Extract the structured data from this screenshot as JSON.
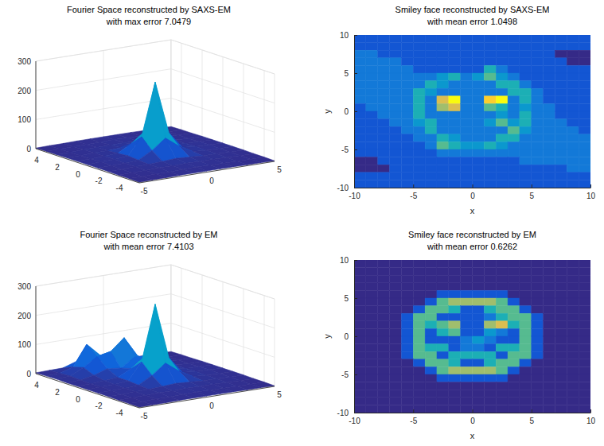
{
  "chart_data": [
    {
      "type": "surface",
      "title": [
        "Fourier Space reconstructed by SAXS-EM",
        "with max error 7.0479"
      ],
      "xlim": [
        -5,
        5
      ],
      "ylim": [
        -5,
        5
      ],
      "zlim": [
        0,
        300
      ],
      "xticks": [
        -5,
        0,
        5
      ],
      "yticks": [
        -4,
        -2,
        0,
        2,
        4
      ],
      "zticks": [
        0,
        100,
        200,
        300
      ],
      "grid": true,
      "x": [
        -5,
        -4,
        -3,
        -2,
        -1,
        0,
        1,
        2,
        3,
        4,
        5
      ],
      "y": [
        -5,
        -4,
        -3,
        -2,
        -1,
        0,
        1,
        2,
        3,
        4,
        5
      ],
      "z": [
        [
          2,
          3,
          3,
          4,
          4,
          4,
          4,
          4,
          3,
          3,
          2
        ],
        [
          3,
          3,
          4,
          4,
          5,
          6,
          5,
          4,
          4,
          3,
          3
        ],
        [
          3,
          4,
          5,
          6,
          6,
          7,
          6,
          6,
          5,
          4,
          3
        ],
        [
          4,
          4,
          6,
          6,
          9,
          12,
          9,
          6,
          6,
          4,
          4
        ],
        [
          4,
          5,
          6,
          9,
          35,
          70,
          35,
          9,
          6,
          5,
          4
        ],
        [
          4,
          6,
          7,
          12,
          70,
          250,
          70,
          12,
          7,
          6,
          4
        ],
        [
          4,
          5,
          6,
          9,
          35,
          70,
          35,
          9,
          6,
          5,
          4
        ],
        [
          4,
          4,
          6,
          6,
          9,
          12,
          9,
          6,
          6,
          4,
          4
        ],
        [
          3,
          4,
          5,
          6,
          6,
          7,
          6,
          6,
          5,
          4,
          3
        ],
        [
          3,
          3,
          4,
          4,
          5,
          6,
          5,
          4,
          4,
          3,
          3
        ],
        [
          2,
          3,
          3,
          4,
          4,
          4,
          4,
          4,
          3,
          3,
          2
        ]
      ]
    },
    {
      "type": "heatmap",
      "title": [
        "Smiley face reconstructed by SAXS-EM",
        "with mean error 1.0498"
      ],
      "xlabel": "x",
      "ylabel": "y",
      "xlim": [
        -10,
        10
      ],
      "ylim": [
        -10,
        10
      ],
      "xticks": [
        -10,
        -5,
        0,
        5,
        10
      ],
      "yticks": [
        -10,
        -5,
        0,
        5,
        10
      ],
      "color_range": [
        0,
        9
      ],
      "x": [
        -9.5,
        -8.5,
        -7.5,
        -6.5,
        -5.5,
        -4.5,
        -3.5,
        -2.5,
        -1.5,
        -0.5,
        0.5,
        1.5,
        2.5,
        3.5,
        4.5,
        5.5,
        6.5,
        7.5,
        8.5,
        9.5
      ],
      "y": [
        9.5,
        8.5,
        7.5,
        6.5,
        5.5,
        4.5,
        3.5,
        2.5,
        1.5,
        0.5,
        -0.5,
        -1.5,
        -2.5,
        -3.5,
        -4.5,
        -5.5,
        -6.5,
        -7.5,
        -8.5,
        -9.5
      ],
      "z": [
        [
          1,
          1,
          1,
          1,
          1,
          1,
          1,
          1,
          1,
          1,
          1,
          1,
          1,
          1,
          1,
          1,
          1,
          1,
          1,
          1
        ],
        [
          1,
          1,
          1,
          1,
          1,
          1,
          1,
          1,
          1,
          1,
          1,
          1,
          1,
          1,
          1,
          1,
          1,
          1,
          1,
          1
        ],
        [
          2,
          2,
          1,
          1,
          1,
          1,
          1,
          1,
          1,
          1,
          1,
          1,
          1,
          1,
          1,
          1,
          1,
          0,
          0,
          0
        ],
        [
          2,
          2,
          2,
          2,
          1,
          1,
          1,
          1,
          1,
          1,
          1,
          1,
          1,
          1,
          1,
          1,
          1,
          1,
          0,
          0
        ],
        [
          2,
          2,
          2,
          2,
          2,
          1,
          1,
          1,
          1,
          1,
          1,
          4,
          2,
          1,
          1,
          1,
          1,
          1,
          1,
          1
        ],
        [
          2,
          2,
          2,
          2,
          2,
          2,
          2,
          3,
          4,
          2,
          3,
          5,
          3,
          2,
          1,
          1,
          1,
          1,
          1,
          1
        ],
        [
          2,
          2,
          2,
          2,
          2,
          2,
          4,
          3,
          2,
          2,
          2,
          2,
          4,
          4,
          2,
          1,
          1,
          1,
          1,
          1
        ],
        [
          2,
          2,
          2,
          2,
          2,
          4,
          3,
          2,
          2,
          2,
          2,
          2,
          2,
          4,
          4,
          2,
          1,
          1,
          1,
          1
        ],
        [
          2,
          2,
          2,
          2,
          2,
          4,
          2,
          7,
          9,
          2,
          2,
          8,
          9,
          2,
          4,
          2,
          1,
          1,
          1,
          1
        ],
        [
          1,
          2,
          2,
          2,
          2,
          4,
          2,
          6,
          7,
          2,
          2,
          5,
          4,
          2,
          3,
          2,
          2,
          1,
          1,
          1
        ],
        [
          1,
          1,
          2,
          2,
          2,
          4,
          2,
          2,
          2,
          2,
          2,
          2,
          3,
          2,
          4,
          2,
          2,
          1,
          1,
          1
        ],
        [
          1,
          1,
          1,
          2,
          2,
          3,
          4,
          2,
          2,
          2,
          2,
          3,
          5,
          3,
          4,
          2,
          2,
          2,
          1,
          1
        ],
        [
          1,
          1,
          1,
          1,
          2,
          2,
          4,
          2,
          2,
          2,
          2,
          2,
          2,
          5,
          3,
          2,
          2,
          2,
          2,
          1
        ],
        [
          1,
          1,
          1,
          1,
          1,
          2,
          2,
          4,
          3,
          2,
          2,
          2,
          4,
          4,
          2,
          2,
          2,
          2,
          2,
          2
        ],
        [
          1,
          1,
          1,
          1,
          1,
          1,
          2,
          5,
          4,
          3,
          3,
          4,
          3,
          2,
          2,
          2,
          2,
          2,
          2,
          2
        ],
        [
          1,
          1,
          1,
          1,
          1,
          1,
          1,
          2,
          2,
          2,
          2,
          2,
          2,
          2,
          2,
          2,
          2,
          2,
          2,
          2
        ],
        [
          0,
          0,
          1,
          1,
          1,
          1,
          1,
          1,
          1,
          1,
          1,
          1,
          1,
          1,
          2,
          2,
          2,
          2,
          2,
          2
        ],
        [
          0,
          0,
          0,
          1,
          1,
          1,
          1,
          1,
          1,
          1,
          1,
          1,
          1,
          1,
          1,
          1,
          1,
          1,
          2,
          2
        ],
        [
          1,
          1,
          1,
          1,
          1,
          1,
          1,
          1,
          1,
          1,
          1,
          1,
          1,
          1,
          1,
          1,
          1,
          1,
          1,
          1
        ],
        [
          1,
          1,
          1,
          1,
          1,
          1,
          1,
          1,
          1,
          1,
          1,
          1,
          1,
          1,
          1,
          1,
          1,
          1,
          1,
          1
        ]
      ]
    },
    {
      "type": "surface",
      "title": [
        "Fourier Space reconstructed by EM",
        "with mean error 7.4103"
      ],
      "xlim": [
        -5,
        5
      ],
      "ylim": [
        -5,
        5
      ],
      "zlim": [
        0,
        300
      ],
      "xticks": [
        -5,
        0,
        5
      ],
      "yticks": [
        -4,
        -2,
        0,
        2,
        4
      ],
      "zticks": [
        0,
        100,
        200,
        300
      ],
      "grid": true,
      "x": [
        -5,
        -4,
        -3,
        -2,
        -1,
        0,
        1,
        2,
        3,
        4,
        5
      ],
      "y": [
        -5,
        -4,
        -3,
        -2,
        -1,
        0,
        1,
        2,
        3,
        4,
        5
      ],
      "z": [
        [
          2,
          3,
          3,
          4,
          4,
          4,
          4,
          4,
          3,
          3,
          2
        ],
        [
          3,
          3,
          4,
          4,
          5,
          6,
          5,
          4,
          4,
          3,
          3
        ],
        [
          3,
          4,
          5,
          6,
          6,
          7,
          6,
          6,
          5,
          4,
          3
        ],
        [
          4,
          4,
          6,
          6,
          9,
          12,
          9,
          6,
          6,
          4,
          4
        ],
        [
          4,
          5,
          6,
          9,
          35,
          70,
          35,
          9,
          6,
          5,
          4
        ],
        [
          4,
          6,
          7,
          12,
          70,
          260,
          70,
          12,
          7,
          6,
          4
        ],
        [
          4,
          5,
          8,
          12,
          35,
          70,
          40,
          12,
          6,
          5,
          4
        ],
        [
          4,
          6,
          15,
          30,
          25,
          55,
          40,
          12,
          6,
          4,
          4
        ],
        [
          5,
          8,
          30,
          60,
          70,
          110,
          40,
          10,
          5,
          4,
          3
        ],
        [
          4,
          6,
          20,
          90,
          45,
          50,
          12,
          6,
          4,
          3,
          3
        ],
        [
          3,
          4,
          5,
          20,
          15,
          8,
          5,
          4,
          3,
          3,
          2
        ]
      ]
    },
    {
      "type": "heatmap",
      "title": [
        "Smiley face reconstructed by EM",
        "with mean error 0.6262"
      ],
      "xlabel": "x",
      "ylabel": "y",
      "xlim": [
        -10,
        10
      ],
      "ylim": [
        -10,
        10
      ],
      "xticks": [
        -10,
        -5,
        0,
        5,
        10
      ],
      "yticks": [
        -10,
        -5,
        0,
        5,
        10
      ],
      "color_range": [
        0,
        9
      ],
      "x": [
        -9.5,
        -8.5,
        -7.5,
        -6.5,
        -5.5,
        -4.5,
        -3.5,
        -2.5,
        -1.5,
        -0.5,
        0.5,
        1.5,
        2.5,
        3.5,
        4.5,
        5.5,
        6.5,
        7.5,
        8.5,
        9.5
      ],
      "y": [
        9.5,
        8.5,
        7.5,
        6.5,
        5.5,
        4.5,
        3.5,
        2.5,
        1.5,
        0.5,
        -0.5,
        -1.5,
        -2.5,
        -3.5,
        -4.5,
        -5.5,
        -6.5,
        -7.5,
        -8.5,
        -9.5
      ],
      "z": [
        [
          0,
          0,
          0,
          0,
          0,
          0,
          0,
          0,
          0,
          0,
          0,
          0,
          0,
          0,
          0,
          0,
          0,
          0,
          0,
          0
        ],
        [
          0,
          0,
          0,
          0,
          0,
          0,
          0,
          0,
          0,
          0,
          0,
          0,
          0,
          0,
          0,
          0,
          0,
          0,
          0,
          0
        ],
        [
          0,
          0,
          0,
          0,
          0,
          0,
          0,
          0,
          0,
          0,
          0,
          0,
          0,
          0,
          0,
          0,
          0,
          0,
          0,
          0
        ],
        [
          0,
          0,
          0,
          0,
          0,
          0,
          0,
          0,
          0,
          0,
          0,
          0,
          0,
          0,
          0,
          0,
          0,
          0,
          0,
          0
        ],
        [
          0,
          0,
          0,
          0,
          0,
          0,
          0,
          1,
          1,
          1,
          1,
          1,
          1,
          0,
          0,
          0,
          0,
          0,
          0,
          0
        ],
        [
          0,
          0,
          0,
          0,
          0,
          0,
          1,
          5,
          6,
          6,
          6,
          6,
          5,
          1,
          0,
          0,
          0,
          0,
          0,
          0
        ],
        [
          0,
          0,
          0,
          0,
          0,
          1,
          5,
          5,
          4,
          1,
          1,
          4,
          5,
          5,
          1,
          0,
          0,
          0,
          0,
          0
        ],
        [
          0,
          0,
          0,
          0,
          1,
          5,
          5,
          1,
          1,
          1,
          1,
          2,
          4,
          5,
          5,
          1,
          0,
          0,
          0,
          0
        ],
        [
          0,
          0,
          0,
          0,
          1,
          5,
          4,
          5,
          6,
          1,
          1,
          6,
          7,
          4,
          5,
          1,
          0,
          0,
          0,
          0
        ],
        [
          0,
          0,
          0,
          0,
          1,
          5,
          1,
          4,
          5,
          1,
          1,
          3,
          2,
          1,
          5,
          1,
          0,
          0,
          0,
          0
        ],
        [
          0,
          0,
          0,
          0,
          1,
          5,
          1,
          1,
          1,
          2,
          3,
          2,
          1,
          1,
          5,
          1,
          0,
          0,
          0,
          0
        ],
        [
          0,
          0,
          0,
          0,
          1,
          5,
          4,
          4,
          1,
          2,
          2,
          1,
          4,
          4,
          5,
          1,
          0,
          0,
          0,
          0
        ],
        [
          0,
          0,
          0,
          0,
          1,
          5,
          5,
          1,
          4,
          4,
          4,
          4,
          1,
          5,
          5,
          1,
          0,
          0,
          0,
          0
        ],
        [
          0,
          0,
          0,
          0,
          0,
          1,
          5,
          5,
          4,
          1,
          1,
          4,
          5,
          5,
          1,
          0,
          0,
          0,
          0,
          0
        ],
        [
          0,
          0,
          0,
          0,
          0,
          0,
          1,
          5,
          6,
          6,
          6,
          6,
          5,
          1,
          0,
          0,
          0,
          0,
          0,
          0
        ],
        [
          0,
          0,
          0,
          0,
          0,
          0,
          0,
          1,
          1,
          1,
          1,
          1,
          1,
          0,
          0,
          0,
          0,
          0,
          0,
          0
        ],
        [
          0,
          0,
          0,
          0,
          0,
          0,
          0,
          0,
          0,
          0,
          0,
          0,
          0,
          0,
          0,
          0,
          0,
          0,
          0,
          0
        ],
        [
          0,
          0,
          0,
          0,
          0,
          0,
          0,
          0,
          0,
          0,
          0,
          0,
          0,
          0,
          0,
          0,
          0,
          0,
          0,
          0
        ],
        [
          0,
          0,
          0,
          0,
          0,
          0,
          0,
          0,
          0,
          0,
          0,
          0,
          0,
          0,
          0,
          0,
          0,
          0,
          0,
          0
        ],
        [
          0,
          0,
          0,
          0,
          0,
          0,
          0,
          0,
          0,
          0,
          0,
          0,
          0,
          0,
          0,
          0,
          0,
          0,
          0,
          0
        ]
      ]
    }
  ]
}
